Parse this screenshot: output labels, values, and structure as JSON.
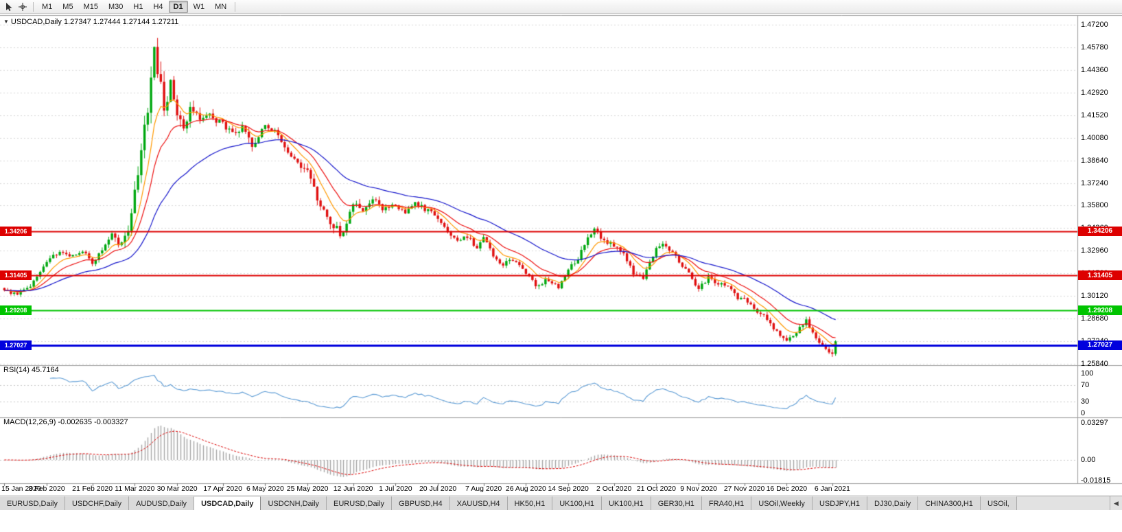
{
  "toolbar": {
    "timeframes": [
      "M1",
      "M5",
      "M15",
      "M30",
      "H1",
      "H4",
      "D1",
      "W1",
      "MN"
    ],
    "active": "D1"
  },
  "chart": {
    "title": "USDCAD,Daily",
    "ohlc": "1.27347 1.27444 1.27144 1.27211",
    "collapse_icon": "▼"
  },
  "price_axis": {
    "labels": [
      "1.47200",
      "1.45780",
      "1.44360",
      "1.42920",
      "1.41520",
      "1.40080",
      "1.38640",
      "1.37240",
      "1.35800",
      "1.34360",
      "1.32960",
      "1.31520",
      "1.30120",
      "1.28680",
      "1.27240",
      "1.25840"
    ]
  },
  "hlines": [
    {
      "label": "1.34206",
      "value": 1.34206,
      "color": "#dd0000",
      "width": 2
    },
    {
      "label": "1.31405",
      "value": 1.31405,
      "color": "#dd0000",
      "width": 2
    },
    {
      "label": "1.29208",
      "value": 1.29208,
      "color": "#00c400",
      "width": 2
    },
    {
      "label": "1.27027",
      "value": 1.27027,
      "color": "#0000dd",
      "width": 3
    }
  ],
  "indicators": {
    "rsi": {
      "label": "RSI(14) 45.7164",
      "period": 14,
      "value": "45.7164",
      "levels": [
        100,
        70,
        30,
        0
      ],
      "color": "#5b9bd5"
    },
    "macd": {
      "label": "MACD(12,26,9) -0.002635 -0.003327",
      "fast": 12,
      "slow": 26,
      "signal": 9,
      "main_value": "-0.002635",
      "signal_value": "-0.003327",
      "axis": [
        {
          "label": "0.03297",
          "value": 0.03297
        },
        {
          "label": "0.00",
          "value": 0
        },
        {
          "label": "-0.01815",
          "value": -0.01815
        }
      ],
      "hist_color": "#a6a6a6",
      "signal_color": "#dd0000"
    }
  },
  "date_axis": [
    {
      "i": 0,
      "label": "15 Jan 2020"
    },
    {
      "i": 13,
      "label": "3 Feb 2020"
    },
    {
      "i": 27,
      "label": "21 Feb 2020"
    },
    {
      "i": 40,
      "label": "11 Mar 2020"
    },
    {
      "i": 53,
      "label": "30 Mar 2020"
    },
    {
      "i": 67,
      "label": "17 Apr 2020"
    },
    {
      "i": 80,
      "label": "6 May 2020"
    },
    {
      "i": 93,
      "label": "25 May 2020"
    },
    {
      "i": 107,
      "label": "12 Jun 2020"
    },
    {
      "i": 120,
      "label": "1 Jul 2020"
    },
    {
      "i": 133,
      "label": "20 Jul 2020"
    },
    {
      "i": 147,
      "label": "7 Aug 2020"
    },
    {
      "i": 160,
      "label": "26 Aug 2020"
    },
    {
      "i": 173,
      "label": "14 Sep 2020"
    },
    {
      "i": 187,
      "label": "2 Oct 2020"
    },
    {
      "i": 200,
      "label": "21 Oct 2020"
    },
    {
      "i": 213,
      "label": "9 Nov 2020"
    },
    {
      "i": 227,
      "label": "27 Nov 2020"
    },
    {
      "i": 240,
      "label": "16 Dec 2020"
    },
    {
      "i": 254,
      "label": "6 Jan 2021"
    }
  ],
  "tabs": {
    "items": [
      "EURUSD,Daily",
      "USDCHF,Daily",
      "AUDUSD,Daily",
      "USDCAD,Daily",
      "USDCNH,Daily",
      "EURUSD,Daily",
      "GBPUSD,H4",
      "XAUUSD,H4",
      "HK50,H1",
      "UK100,H1",
      "UK100,H1",
      "GER30,H1",
      "FRA40,H1",
      "USOil,Weekly",
      "USDJPY,H1",
      "DJ30,Daily",
      "CHINA300,H1",
      "USOil,"
    ],
    "active_index": 3,
    "scroll_left_icon": "◀"
  },
  "chart_data": {
    "type": "candlestick",
    "symbol": "USDCAD",
    "timeframe": "Daily",
    "bars": 256,
    "price_range": {
      "top": 1.472,
      "bottom": 1.2584
    },
    "up_color": "#00a810",
    "down_color": "#e01010",
    "moving_averages": [
      {
        "period": 8,
        "color": "#ff9900"
      },
      {
        "period": 16,
        "color": "#ee1111"
      },
      {
        "period": 40,
        "color": "#1515cc"
      }
    ],
    "waypoints": [
      [
        0,
        1.304,
        0.003
      ],
      [
        4,
        1.3025,
        0.003
      ],
      [
        8,
        1.308,
        0.003
      ],
      [
        13,
        1.323,
        0.0035
      ],
      [
        17,
        1.329,
        0.0035
      ],
      [
        20,
        1.326,
        0.003
      ],
      [
        24,
        1.33,
        0.003
      ],
      [
        27,
        1.322,
        0.0035
      ],
      [
        30,
        1.329,
        0.004
      ],
      [
        33,
        1.339,
        0.005
      ],
      [
        35,
        1.334,
        0.005
      ],
      [
        38,
        1.342,
        0.007
      ],
      [
        40,
        1.366,
        0.01
      ],
      [
        42,
        1.392,
        0.013
      ],
      [
        44,
        1.422,
        0.016
      ],
      [
        46,
        1.456,
        0.016
      ],
      [
        47,
        1.445,
        0.016
      ],
      [
        49,
        1.418,
        0.014
      ],
      [
        51,
        1.435,
        0.012
      ],
      [
        53,
        1.415,
        0.01
      ],
      [
        55,
        1.408,
        0.009
      ],
      [
        57,
        1.419,
        0.008
      ],
      [
        60,
        1.413,
        0.007
      ],
      [
        63,
        1.416,
        0.007
      ],
      [
        67,
        1.409,
        0.006
      ],
      [
        70,
        1.403,
        0.006
      ],
      [
        73,
        1.407,
        0.006
      ],
      [
        76,
        1.397,
        0.006
      ],
      [
        80,
        1.407,
        0.006
      ],
      [
        83,
        1.404,
        0.005
      ],
      [
        86,
        1.394,
        0.005
      ],
      [
        89,
        1.387,
        0.005
      ],
      [
        93,
        1.379,
        0.006
      ],
      [
        96,
        1.363,
        0.006
      ],
      [
        99,
        1.35,
        0.006
      ],
      [
        102,
        1.343,
        0.007
      ],
      [
        104,
        1.339,
        0.007
      ],
      [
        107,
        1.359,
        0.007
      ],
      [
        110,
        1.356,
        0.005
      ],
      [
        113,
        1.362,
        0.005
      ],
      [
        116,
        1.356,
        0.004
      ],
      [
        120,
        1.358,
        0.004
      ],
      [
        123,
        1.354,
        0.004
      ],
      [
        126,
        1.36,
        0.004
      ],
      [
        129,
        1.356,
        0.004
      ],
      [
        133,
        1.351,
        0.004
      ],
      [
        136,
        1.342,
        0.004
      ],
      [
        139,
        1.335,
        0.004
      ],
      [
        142,
        1.339,
        0.004
      ],
      [
        145,
        1.331,
        0.004
      ],
      [
        147,
        1.338,
        0.004
      ],
      [
        150,
        1.327,
        0.004
      ],
      [
        153,
        1.321,
        0.004
      ],
      [
        156,
        1.324,
        0.0035
      ],
      [
        160,
        1.316,
        0.0035
      ],
      [
        163,
        1.307,
        0.0035
      ],
      [
        166,
        1.311,
        0.0035
      ],
      [
        170,
        1.307,
        0.0035
      ],
      [
        173,
        1.318,
        0.004
      ],
      [
        176,
        1.324,
        0.004
      ],
      [
        179,
        1.339,
        0.0045
      ],
      [
        181,
        1.342,
        0.0045
      ],
      [
        184,
        1.337,
        0.0045
      ],
      [
        187,
        1.332,
        0.0045
      ],
      [
        190,
        1.329,
        0.004
      ],
      [
        193,
        1.315,
        0.004
      ],
      [
        196,
        1.312,
        0.004
      ],
      [
        200,
        1.331,
        0.0045
      ],
      [
        202,
        1.333,
        0.0045
      ],
      [
        205,
        1.329,
        0.004
      ],
      [
        208,
        1.32,
        0.004
      ],
      [
        211,
        1.312,
        0.004
      ],
      [
        213,
        1.306,
        0.004
      ],
      [
        216,
        1.313,
        0.0035
      ],
      [
        219,
        1.309,
        0.0035
      ],
      [
        222,
        1.307,
        0.0035
      ],
      [
        225,
        1.3,
        0.0035
      ],
      [
        227,
        1.299,
        0.0035
      ],
      [
        230,
        1.293,
        0.0035
      ],
      [
        233,
        1.289,
        0.0035
      ],
      [
        236,
        1.28,
        0.0035
      ],
      [
        240,
        1.274,
        0.0035
      ],
      [
        243,
        1.278,
        0.0035
      ],
      [
        246,
        1.286,
        0.0035
      ],
      [
        249,
        1.275,
        0.0035
      ],
      [
        252,
        1.267,
        0.0035
      ],
      [
        254,
        1.264,
        0.0035
      ],
      [
        255,
        1.2721,
        0.003
      ]
    ]
  }
}
